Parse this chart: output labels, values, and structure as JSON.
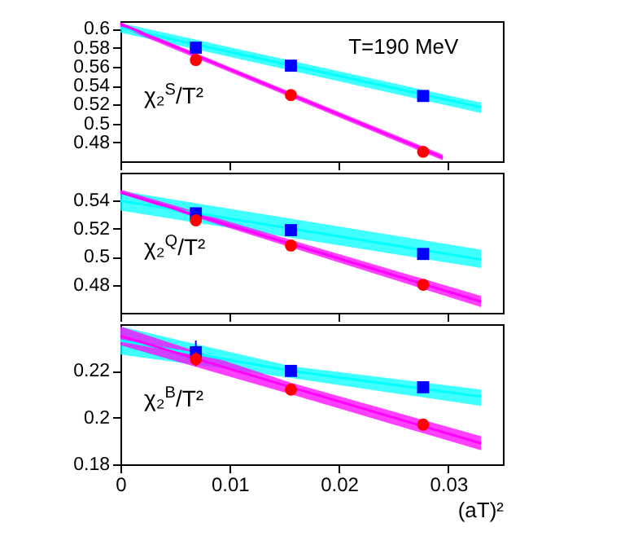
{
  "chart_data": [
    {
      "type": "scatter",
      "ylabel": "χ₂$^{S}$/T²",
      "annotations": [
        "T=190 MeV"
      ],
      "xlim": [
        0,
        0.035
      ],
      "xticks": [
        0,
        0.01,
        0.02,
        0.03
      ],
      "ylim": [
        0.46,
        0.608
      ],
      "yticks": [
        0.48,
        0.5,
        0.52,
        0.54,
        0.56,
        0.58,
        0.6
      ],
      "tick_labels": "y",
      "grid": false,
      "series": [
        {
          "type": "line",
          "color": "#00ffff",
          "x": [
            0,
            0.033
          ],
          "values": [
            0.601,
            0.517
          ],
          "lower": [
            0.596,
            0.511
          ],
          "upper": [
            0.606,
            0.522
          ]
        },
        {
          "type": "line",
          "color": "#ff00ff",
          "x": [
            0,
            0.0295
          ],
          "values": [
            0.605,
            0.464
          ],
          "lower": [
            0.602,
            0.461
          ],
          "upper": [
            0.607,
            0.467
          ]
        },
        {
          "marker": "square",
          "color": "#0000ff",
          "x": [
            0.0069,
            0.0156,
            0.0277
          ],
          "values": [
            0.58,
            0.561,
            0.529
          ]
        },
        {
          "marker": "circle",
          "color": "#ff0000",
          "x": [
            0.0069,
            0.0156,
            0.0277
          ],
          "values": [
            0.567,
            0.53,
            0.47
          ]
        }
      ]
    },
    {
      "type": "scatter",
      "ylabel": "χ₂$^{Q}$/T²",
      "xlim": [
        0,
        0.035
      ],
      "xticks": [
        0,
        0.01,
        0.02,
        0.03
      ],
      "ylim": [
        0.46,
        0.56
      ],
      "yticks": [
        0.48,
        0.5,
        0.52,
        0.54
      ],
      "tick_labels": "y",
      "grid": false,
      "series": [
        {
          "type": "line",
          "color": "#00ffff",
          "x": [
            0,
            0.033
          ],
          "values": [
            0.54,
            0.498
          ],
          "lower": [
            0.533,
            0.492
          ],
          "upper": [
            0.547,
            0.505
          ]
        },
        {
          "type": "line",
          "color": "#ff00ff",
          "x": [
            0,
            0.033
          ],
          "values": [
            0.546,
            0.468
          ],
          "lower": [
            0.545,
            0.464
          ],
          "upper": [
            0.548,
            0.472
          ]
        },
        {
          "marker": "square",
          "color": "#0000ff",
          "x": [
            0.0069,
            0.0156,
            0.0277
          ],
          "values": [
            0.531,
            0.519,
            0.502
          ]
        },
        {
          "marker": "circle",
          "color": "#ff0000",
          "x": [
            0.0069,
            0.0156,
            0.0277
          ],
          "values": [
            0.526,
            0.508,
            0.48
          ],
          "errors": [
            0.004,
            null,
            null
          ]
        }
      ]
    },
    {
      "type": "scatter",
      "ylabel": "χ₂$^{B}$/T²",
      "xlabel": "(aT)²",
      "xlim": [
        0,
        0.035
      ],
      "xticks": [
        0,
        0.01,
        0.02,
        0.03
      ],
      "ylim": [
        0.18,
        0.24
      ],
      "yticks": [
        0.18,
        0.2,
        0.22
      ],
      "grid": false,
      "series": [
        {
          "type": "line",
          "color": "#00ffff",
          "x": [
            0,
            0.0156,
            0.033
          ],
          "values": [
            0.233,
            0.22,
            0.209
          ],
          "lower": [
            0.227,
            0.217,
            0.205
          ],
          "upper": [
            0.239,
            0.222,
            0.212
          ]
        },
        {
          "type": "line",
          "color": "#ff00ff",
          "x": [
            0,
            0.0156,
            0.033
          ],
          "values": [
            0.235,
            0.213,
            0.189
          ],
          "lower": [
            0.231,
            0.21,
            0.186
          ],
          "upper": [
            0.239,
            0.215,
            0.192
          ]
        },
        {
          "marker": "square",
          "color": "#0000ff",
          "x": [
            0.0069,
            0.0156,
            0.0277
          ],
          "values": [
            0.228,
            0.22,
            0.213
          ],
          "errors": [
            0.005,
            null,
            null
          ]
        },
        {
          "marker": "circle",
          "color": "#ff0000",
          "x": [
            0.0069,
            0.0156,
            0.0277
          ],
          "values": [
            0.225,
            0.212,
            0.197
          ],
          "errors": [
            0.003,
            null,
            null
          ]
        }
      ]
    }
  ]
}
